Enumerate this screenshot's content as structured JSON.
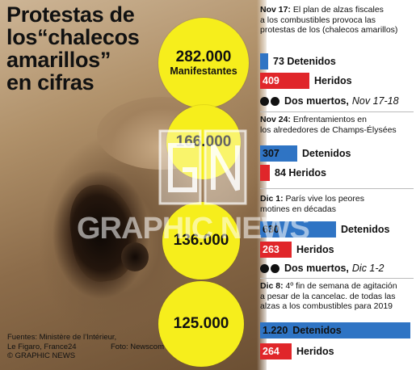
{
  "title": [
    "Protestas de",
    "los“chalecos",
    "amarillos”",
    "en cifras"
  ],
  "circles": [
    {
      "value": "282.000",
      "label": "Manifestantes"
    },
    {
      "value": "166.000"
    },
    {
      "value": "136.000"
    },
    {
      "value": "125.000"
    }
  ],
  "sources": {
    "line1": "Fuentes: Ministère de l’Intérieur,",
    "line2": "Le Figaro, France24",
    "foto": "Foto: Newscom",
    "copyright": "© GRAPHIC NEWS"
  },
  "watermark": "GRAPHIC NEWS",
  "events": [
    {
      "date": "Nov 17:",
      "text": [
        "El plan de alzas fiscales",
        "a los combustibles provoca las",
        "protestas de los (chalecos amarillos)"
      ],
      "detained": {
        "value": "73",
        "label": "Detenidos"
      },
      "injured": {
        "value": "409",
        "label": "Heridos"
      },
      "deaths": {
        "label": "Dos muertos,",
        "date": "Nov 17-18"
      }
    },
    {
      "date": "Nov 24:",
      "text": [
        "Enfrentamientos en",
        "los alrededores de Champs-Élysées"
      ],
      "detained": {
        "value": "307",
        "label": "Detenidos"
      },
      "injured": {
        "value": "84",
        "label": "Heridos"
      }
    },
    {
      "date": "Dic 1:",
      "text": [
        "París vive los peores",
        "motines en décadas"
      ],
      "detained": {
        "value": "630",
        "label": "Detenidos"
      },
      "injured": {
        "value": "263",
        "label": "Heridos"
      },
      "deaths": {
        "label": "Dos muertos,",
        "date": "Dic 1-2"
      }
    },
    {
      "date": "Dic 8:",
      "text": [
        "4º fin de semana de agitación",
        "a pesar de la cancelac. de todas las",
        "alzas a los combustibles para 2019"
      ],
      "detained": {
        "value": "1.220",
        "label": "Detenidos"
      },
      "injured": {
        "value": "264",
        "label": "Heridos"
      }
    }
  ],
  "colors": {
    "detained": "#2f74c4",
    "injured": "#e0262a",
    "circle": "#f6ee1c"
  }
}
